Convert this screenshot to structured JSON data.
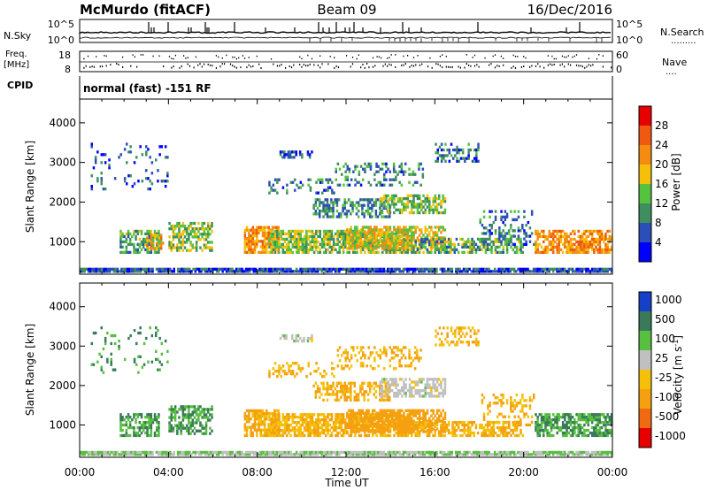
{
  "header": {
    "station": "McMurdo (fitACF)",
    "beam": "Beam 09",
    "date": "16/Dec/2016"
  },
  "panels": {
    "nsky": {
      "label": "N.Sky",
      "right_label": "N.Search",
      "right_dots": ".........",
      "ticks": [
        "10^5",
        "10^0"
      ]
    },
    "freq": {
      "label_line1": "Freq.",
      "label_line2": "[MHz]",
      "left_ticks": [
        "18",
        "8"
      ],
      "right_ticks": [
        "60",
        "0"
      ],
      "right_label": "Nave",
      "right_dots": "...."
    },
    "cpid": {
      "label": "CPID",
      "text": "normal (fast) -151 RF"
    }
  },
  "colors": {
    "power": [
      "#0000ff",
      "#2b4fb8",
      "#3f8f5e",
      "#55c240",
      "#f4c00a",
      "#f48c14",
      "#ef5a10",
      "#e60000"
    ],
    "velocity": [
      "#1640c8",
      "#3a7a5a",
      "#58c040",
      "#c0c0c0",
      "#f4c00a",
      "#f4a010",
      "#ef6a10",
      "#e60000"
    ],
    "ground_scatter": "#9a9a9a"
  },
  "chart_data": [
    {
      "type": "heatmap",
      "name": "power",
      "ylabel": "Slant Range [km]",
      "yticks": [
        "1000",
        "2000",
        "3000",
        "4000"
      ],
      "ylim_km": [
        180,
        4600
      ],
      "xlim_hours": [
        0,
        24
      ],
      "colorbar": {
        "label": "Power [dB]",
        "ticks": [
          "4",
          "8",
          "12",
          "16",
          "20",
          "24",
          "28"
        ],
        "range": [
          0,
          32
        ]
      },
      "regions": [
        {
          "t0": 0.0,
          "t1": 24.0,
          "r0": 220,
          "r1": 330,
          "value": 6,
          "density": 0.9
        },
        {
          "t0": 1.8,
          "t1": 3.6,
          "r0": 700,
          "r1": 1300,
          "value": 12,
          "density": 0.55
        },
        {
          "t0": 3.0,
          "t1": 3.8,
          "r0": 800,
          "r1": 1200,
          "value": 20,
          "density": 0.6
        },
        {
          "t0": 4.0,
          "t1": 6.0,
          "r0": 750,
          "r1": 1500,
          "value": 14,
          "density": 0.55
        },
        {
          "t0": 7.4,
          "t1": 9.0,
          "r0": 700,
          "r1": 1400,
          "value": 22,
          "density": 0.75
        },
        {
          "t0": 8.5,
          "t1": 15.0,
          "r0": 700,
          "r1": 1300,
          "value": 14,
          "density": 0.75
        },
        {
          "t0": 12.0,
          "t1": 16.5,
          "r0": 800,
          "r1": 1400,
          "value": 18,
          "density": 0.7
        },
        {
          "t0": 15.0,
          "t1": 20.0,
          "r0": 700,
          "r1": 1100,
          "value": 12,
          "density": 0.6
        },
        {
          "t0": 10.5,
          "t1": 14.0,
          "r0": 1600,
          "r1": 2100,
          "value": 10,
          "density": 0.5
        },
        {
          "t0": 13.5,
          "t1": 16.5,
          "r0": 1700,
          "r1": 2200,
          "value": 14,
          "density": 0.6
        },
        {
          "t0": 8.5,
          "t1": 11.5,
          "r0": 2200,
          "r1": 2600,
          "value": 8,
          "density": 0.35
        },
        {
          "t0": 11.5,
          "t1": 15.5,
          "r0": 2400,
          "r1": 3000,
          "value": 9,
          "density": 0.3
        },
        {
          "t0": 16.0,
          "t1": 18.0,
          "r0": 3000,
          "r1": 3500,
          "value": 8,
          "density": 0.4
        },
        {
          "t0": 9.0,
          "t1": 10.5,
          "r0": 3100,
          "r1": 3300,
          "value": 6,
          "density": 0.5
        },
        {
          "t0": 0.5,
          "t1": 4.0,
          "r0": 2300,
          "r1": 3500,
          "value": 6,
          "density": 0.08
        },
        {
          "t0": 20.5,
          "t1": 24.0,
          "r0": 700,
          "r1": 1300,
          "value": 22,
          "density": 0.7
        },
        {
          "t0": 18.0,
          "t1": 20.5,
          "r0": 900,
          "r1": 1800,
          "value": 8,
          "density": 0.25
        }
      ]
    },
    {
      "type": "heatmap",
      "name": "velocity",
      "ylabel": "Slant Range [km]",
      "yticks": [
        "1000",
        "2000",
        "3000",
        "4000"
      ],
      "ylim_km": [
        180,
        4600
      ],
      "xlim_hours": [
        0,
        24
      ],
      "xlabel": "Time UT",
      "xticks": [
        "00:00",
        "04:00",
        "08:00",
        "12:00",
        "16:00",
        "20:00",
        "00:00"
      ],
      "colorbar": {
        "label": "Velocity [m s^-1]",
        "ticks": [
          "1000",
          "500",
          "100",
          "25",
          "-25",
          "-100",
          "-500",
          "-1000"
        ]
      },
      "regions": [
        {
          "t0": 0.0,
          "t1": 24.0,
          "r0": 220,
          "r1": 330,
          "value": 25,
          "density": 0.9
        },
        {
          "t0": 1.8,
          "t1": 3.6,
          "r0": 700,
          "r1": 1300,
          "value": 100,
          "density": 0.55
        },
        {
          "t0": 4.0,
          "t1": 6.0,
          "r0": 750,
          "r1": 1500,
          "value": 100,
          "density": 0.55
        },
        {
          "t0": 7.4,
          "t1": 9.0,
          "r0": 700,
          "r1": 1400,
          "value": -100,
          "density": 0.75
        },
        {
          "t0": 8.5,
          "t1": 15.0,
          "r0": 700,
          "r1": 1300,
          "value": -100,
          "density": 0.75
        },
        {
          "t0": 12.0,
          "t1": 16.5,
          "r0": 800,
          "r1": 1400,
          "value": -300,
          "density": 0.7
        },
        {
          "t0": 15.0,
          "t1": 20.0,
          "r0": 700,
          "r1": 1100,
          "value": -100,
          "density": 0.6
        },
        {
          "t0": 10.5,
          "t1": 14.0,
          "r0": 1600,
          "r1": 2100,
          "value": -100,
          "density": 0.5
        },
        {
          "t0": 13.5,
          "t1": 16.5,
          "r0": 1700,
          "r1": 2200,
          "value": 0,
          "density": 0.6
        },
        {
          "t0": 8.5,
          "t1": 11.5,
          "r0": 2200,
          "r1": 2600,
          "value": -100,
          "density": 0.35
        },
        {
          "t0": 11.5,
          "t1": 15.5,
          "r0": 2400,
          "r1": 3000,
          "value": -100,
          "density": 0.3
        },
        {
          "t0": 16.0,
          "t1": 18.0,
          "r0": 3000,
          "r1": 3500,
          "value": -100,
          "density": 0.4
        },
        {
          "t0": 9.0,
          "t1": 10.5,
          "r0": 3100,
          "r1": 3300,
          "value": 0,
          "density": 0.5
        },
        {
          "t0": 0.5,
          "t1": 4.0,
          "r0": 2300,
          "r1": 3500,
          "value": 100,
          "density": 0.08
        },
        {
          "t0": 20.5,
          "t1": 24.0,
          "r0": 700,
          "r1": 1300,
          "value": 100,
          "density": 0.7
        },
        {
          "t0": 18.0,
          "t1": 20.5,
          "r0": 900,
          "r1": 1800,
          "value": -100,
          "density": 0.25
        }
      ]
    }
  ]
}
